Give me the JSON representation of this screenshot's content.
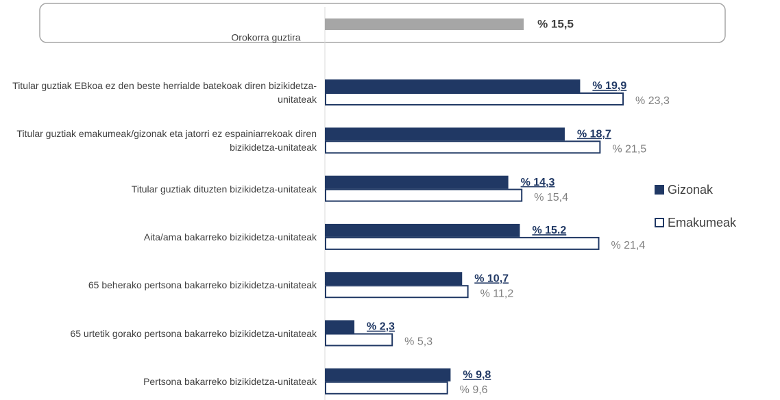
{
  "chart_data": {
    "type": "bar",
    "orientation": "horizontal",
    "xlim": [
      0,
      35
    ],
    "total": {
      "label": "Orokorra guztira",
      "value": 15.5,
      "value_label": "% 15,5",
      "color": "#a6a6a6"
    },
    "categories": [
      "Titular guztiak EBkoa ez den beste herrialde batekoak diren bizikidetza-unitateak",
      "Titular guztiak emakumeak/gizonak eta jatorri ez espainiarrekoak diren bizikidetza-unitateak",
      "Titular guztiak dituzten bizikidetza-unitateak",
      "Aita/ama bakarreko bizikidetza-unitateak",
      "65 beherako pertsona bakarreko bizikidetza-unitateak",
      "65 urtetik gorako pertsona bakarreko bizikidetza-unitateak",
      "Pertsona bakarreko bizikidetza-unitateak"
    ],
    "series": [
      {
        "name": "Gizonak",
        "color": "#203864",
        "values": [
          19.9,
          18.7,
          14.3,
          15.2,
          10.7,
          2.3,
          9.8
        ],
        "value_labels": [
          "% 19,9",
          "% 18,7",
          "% 14,3",
          "% 15.2",
          "% 10,7",
          "% 2,3",
          "% 9,8"
        ]
      },
      {
        "name": "Emakumeak",
        "color": "#ffffff",
        "values": [
          23.3,
          21.5,
          15.4,
          21.4,
          11.2,
          5.3,
          9.6
        ],
        "value_labels": [
          "% 23,3",
          "% 21,5",
          "% 15,4",
          "% 21,4",
          "% 11,2",
          "% 5,3",
          "% 9,6"
        ]
      }
    ],
    "legend": "right"
  }
}
